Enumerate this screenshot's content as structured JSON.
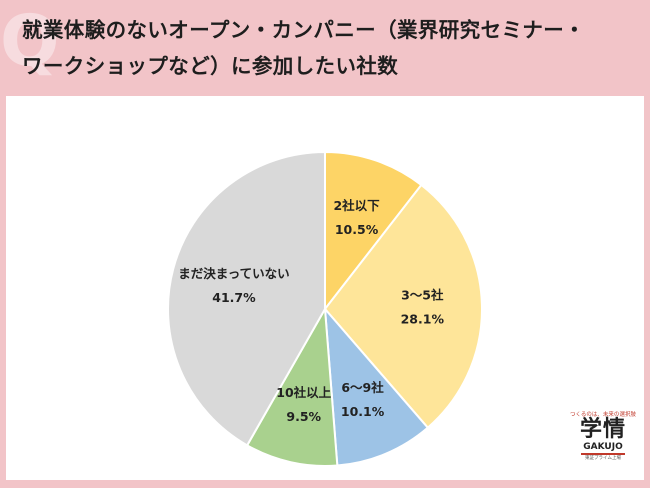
{
  "header": {
    "q_mark": "Q",
    "title_line1": "就業体験のないオープン・カンパニー（業界研究セミナー・",
    "title_line2": "ワークショップなど）に参加したい社数"
  },
  "chart_data": {
    "type": "pie",
    "start": "12 o'clock, clockwise",
    "slices": [
      {
        "label": "2社以下",
        "value": 10.5,
        "value_text": "10.5%",
        "color": "#fdd466"
      },
      {
        "label": "3〜5社",
        "value": 28.1,
        "value_text": "28.1%",
        "color": "#fee599"
      },
      {
        "label": "6〜9社",
        "value": 10.1,
        "value_text": "10.1%",
        "color": "#9dc3e6"
      },
      {
        "label": "10社以上",
        "value": 9.5,
        "value_text": "9.5%",
        "color": "#a9d18e"
      },
      {
        "label": "まだ決まっていない",
        "value": 41.7,
        "value_text": "41.7%",
        "color": "#d9d9d9"
      }
    ]
  },
  "logo": {
    "tagline": "つくるのは、未来の選択肢",
    "mark": "学情",
    "brand": "GAKUJO",
    "sub": "東証プライム上場"
  }
}
